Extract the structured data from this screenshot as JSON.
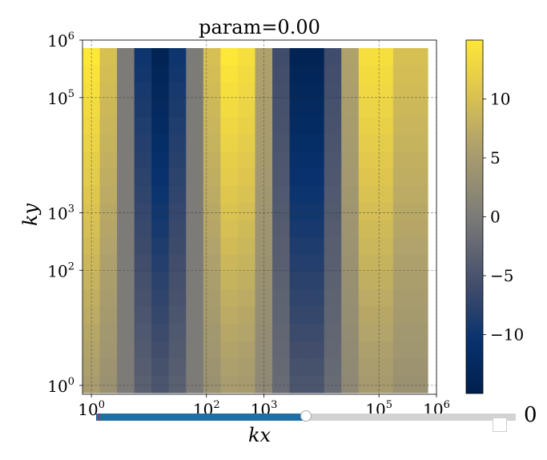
{
  "chart_data": {
    "type": "heatmap",
    "title": "param=0.00",
    "xlabel": "kx",
    "ylabel": "ky",
    "x_scale": "log",
    "y_scale": "log",
    "xlim": [
      0.7,
      1000000
    ],
    "ylim": [
      0.7,
      1000000
    ],
    "x_ticks": [
      {
        "value": 1,
        "label": "10",
        "exp": "0"
      },
      {
        "value": 100,
        "label": "10",
        "exp": "2"
      },
      {
        "value": 1000,
        "label": "10",
        "exp": "3"
      },
      {
        "value": 100000,
        "label": "10",
        "exp": "5"
      },
      {
        "value": 1000000,
        "label": "10",
        "exp": "6"
      }
    ],
    "y_ticks": [
      {
        "value": 1,
        "label": "10",
        "exp": "0"
      },
      {
        "value": 100,
        "label": "10",
        "exp": "2"
      },
      {
        "value": 1000,
        "label": "10",
        "exp": "3"
      },
      {
        "value": 100000,
        "label": "10",
        "exp": "5"
      },
      {
        "value": 1000000,
        "label": "10",
        "exp": "6"
      }
    ],
    "grid": true,
    "colormap": "cividis",
    "colorbar": {
      "vmin": -15,
      "vmax": 15,
      "ticks": [
        {
          "value": 10,
          "label": "10"
        },
        {
          "value": 5,
          "label": "5"
        },
        {
          "value": 0,
          "label": "0"
        },
        {
          "value": -5,
          "label": "−5"
        },
        {
          "value": -10,
          "label": "−10"
        }
      ]
    },
    "column_peak_values": [
      15,
      10,
      0,
      -10,
      -14,
      -10,
      0,
      10,
      15,
      14,
      6,
      -6,
      -14,
      -14,
      -6,
      6,
      14,
      14,
      10,
      10
    ],
    "bottom_scale": 0.35,
    "rows": 20
  },
  "controls": {
    "slider_value_label": "0",
    "slider_fraction": 0.5
  }
}
